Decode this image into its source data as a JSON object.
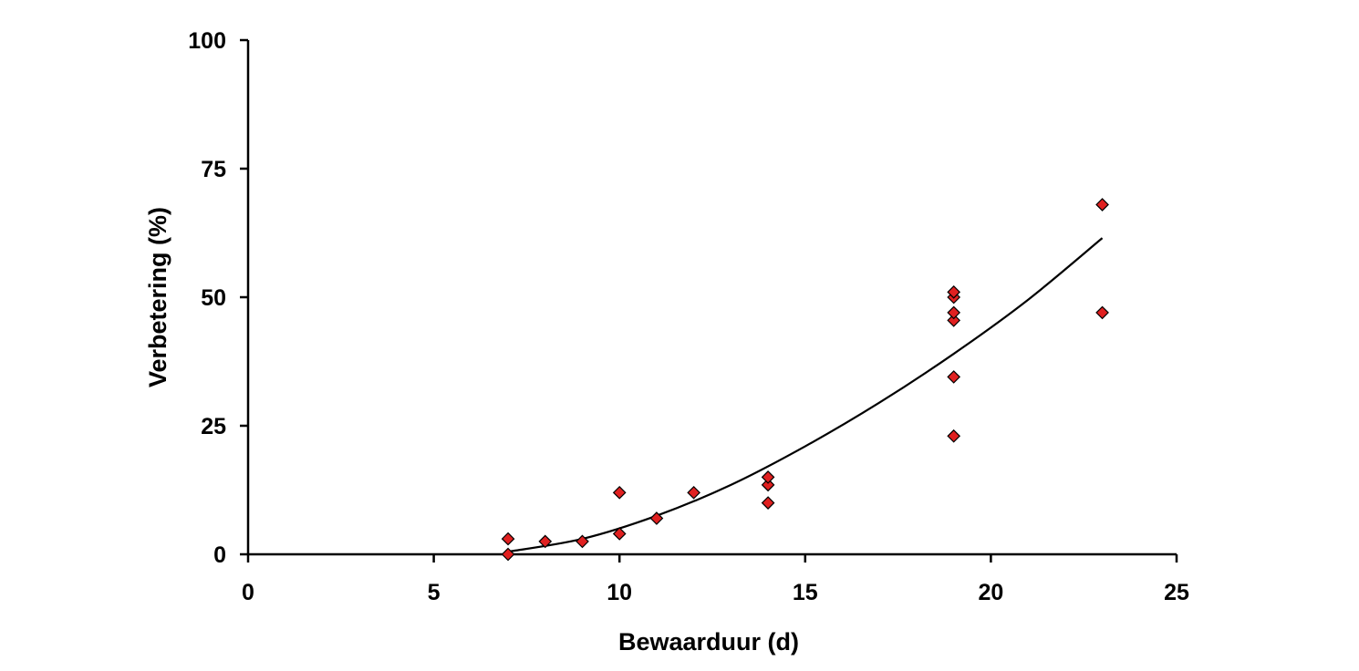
{
  "chart_data": {
    "type": "scatter",
    "title": "",
    "xlabel": "Bewaarduur (d)",
    "ylabel": "Verbetering (%)",
    "xlim": [
      0,
      25
    ],
    "ylim": [
      0,
      100
    ],
    "x_ticks": [
      0,
      5,
      10,
      15,
      20,
      25
    ],
    "y_ticks": [
      0,
      25,
      50,
      75,
      100
    ],
    "grid": false,
    "legend": "none",
    "marker": "diamond",
    "marker_color": "#e02020",
    "marker_edge_color": "#000000",
    "series": [
      {
        "points": [
          {
            "x": 7,
            "y": 0
          },
          {
            "x": 7,
            "y": 3
          },
          {
            "x": 8,
            "y": 2.5
          },
          {
            "x": 9,
            "y": 2.5
          },
          {
            "x": 10,
            "y": 4
          },
          {
            "x": 10,
            "y": 12
          },
          {
            "x": 11,
            "y": 7
          },
          {
            "x": 12,
            "y": 12
          },
          {
            "x": 14,
            "y": 10
          },
          {
            "x": 14,
            "y": 13.5
          },
          {
            "x": 14,
            "y": 15
          },
          {
            "x": 19,
            "y": 23
          },
          {
            "x": 19,
            "y": 34.5
          },
          {
            "x": 19,
            "y": 45.5
          },
          {
            "x": 19,
            "y": 47
          },
          {
            "x": 19,
            "y": 50
          },
          {
            "x": 19,
            "y": 51
          },
          {
            "x": 23,
            "y": 47
          },
          {
            "x": 23,
            "y": 68
          }
        ]
      }
    ],
    "trendline": {
      "type": "polynomial",
      "color": "#000000",
      "x_range": [
        7,
        23
      ],
      "points": [
        {
          "x": 7,
          "y": 0.5
        },
        {
          "x": 9,
          "y": 3
        },
        {
          "x": 11,
          "y": 7.5
        },
        {
          "x": 13,
          "y": 13.5
        },
        {
          "x": 15,
          "y": 21
        },
        {
          "x": 17,
          "y": 29.5
        },
        {
          "x": 19,
          "y": 39
        },
        {
          "x": 21,
          "y": 49.5
        },
        {
          "x": 23,
          "y": 61.5
        }
      ]
    }
  }
}
